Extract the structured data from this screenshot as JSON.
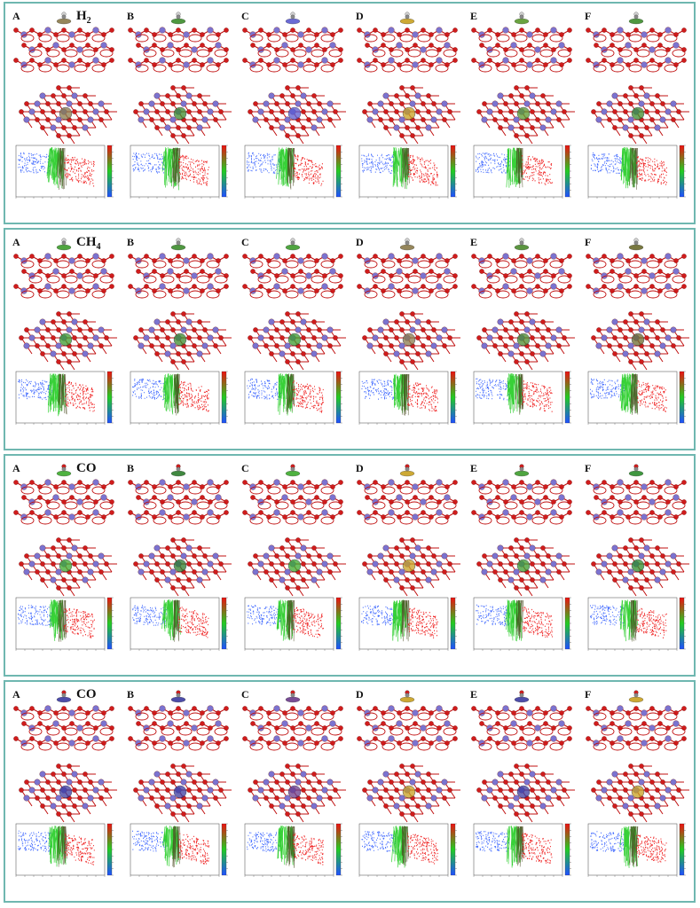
{
  "figure": {
    "panels": [
      {
        "molecule": "H",
        "subscript": "2",
        "labels": [
          "A",
          "B",
          "C",
          "D",
          "E",
          "F"
        ],
        "iso_colors": [
          "#8a7a4a",
          "#3c8c2c",
          "#5a5ad0",
          "#c8a020",
          "#5a9a2c",
          "#3c8c2c"
        ]
      },
      {
        "molecule": "CH",
        "subscript": "4",
        "labels": [
          "A",
          "B",
          "C",
          "D",
          "E",
          "F"
        ],
        "iso_colors": [
          "#3c9c2c",
          "#3c8c2c",
          "#3c9c2c",
          "#8a7a4a",
          "#4a8a2c",
          "#6a6a2c"
        ]
      },
      {
        "molecule": "CO",
        "subscript": "",
        "labels": [
          "A",
          "B",
          "C",
          "D",
          "E",
          "F"
        ],
        "iso_colors": [
          "#3caa2c",
          "#2c7c2c",
          "#3caa2c",
          "#c8a020",
          "#3c9c2c",
          "#2c8c2c"
        ]
      },
      {
        "molecule": "CO",
        "subscript": "",
        "labels": [
          "A",
          "B",
          "C",
          "D",
          "E",
          "F"
        ],
        "iso_colors": [
          "#3a3aa0",
          "#3a3aa0",
          "#6a3a8a",
          "#c8a020",
          "#3a3aa0",
          "#c8a020"
        ]
      }
    ],
    "colors": {
      "frame": "#6fb7b0",
      "o_atom": "#d01c1c",
      "metal_atom": "#7b73d0",
      "bond": "#c01010",
      "attractive": "#1f4fff",
      "vdw": "#22cc22",
      "repulsive": "#ee1111"
    }
  }
}
